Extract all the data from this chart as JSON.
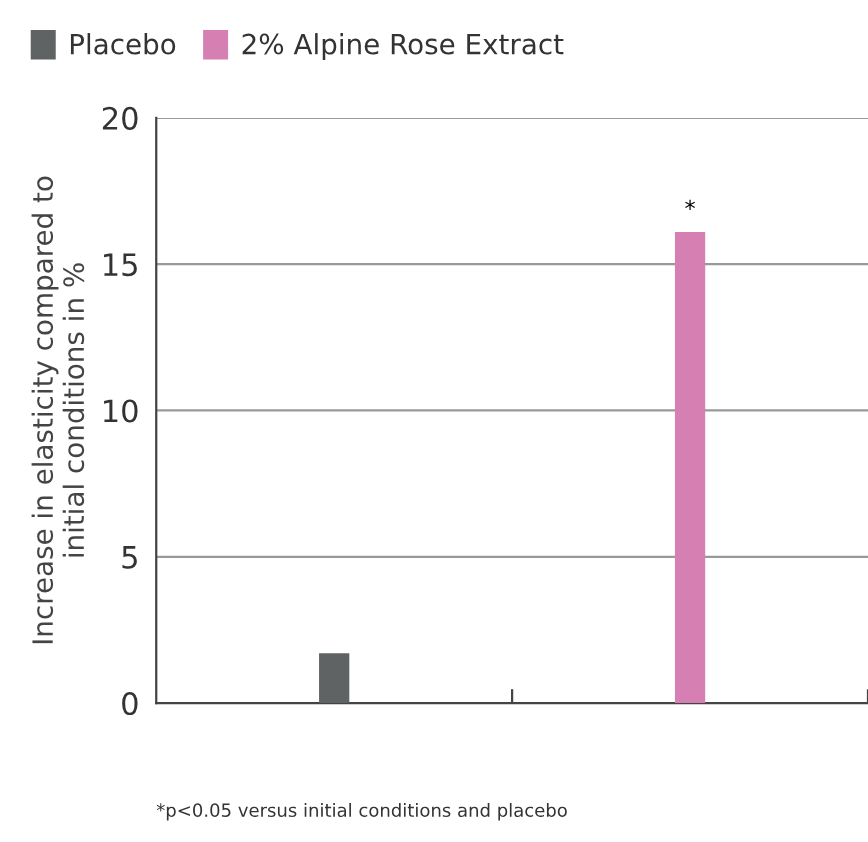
{
  "chart_data": {
    "type": "bar",
    "ylabel": "Increase in elasticity compared to\ninitial conditions in %",
    "categories": [
      null,
      null
    ],
    "series": [
      {
        "name": "Placebo",
        "color": "#5f6363",
        "values": [
          1.7,
          null
        ]
      },
      {
        "name": "2% Alpine Rose Extract",
        "color": "#d67fb3",
        "values": [
          null,
          16.1
        ]
      }
    ],
    "ylim": [
      0,
      20
    ],
    "yticks": [
      0,
      5,
      10,
      15,
      20
    ],
    "grid": "y",
    "legend": "top left",
    "annotations": [
      {
        "text": "*",
        "y": 16.1
      },
      "*p<0.05 versus initial conditions and placebo"
    ]
  }
}
